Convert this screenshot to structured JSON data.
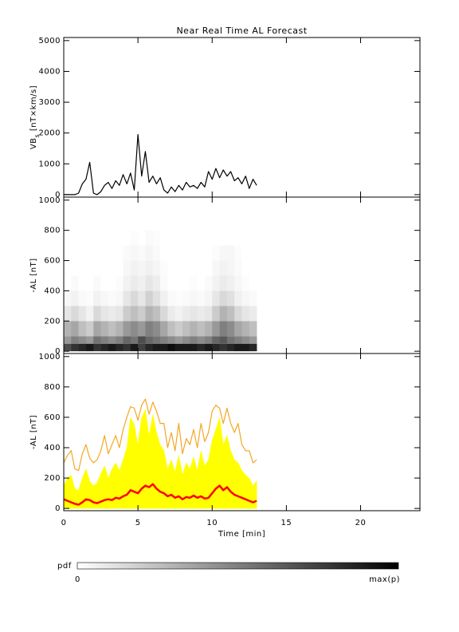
{
  "chart_data": [
    {
      "type": "line",
      "title": "Near Real Time AL Forecast",
      "ylabel": [
        "VB",
        "s",
        " [nT×km/s]"
      ],
      "x": [
        0,
        0.25,
        0.5,
        0.75,
        1,
        1.25,
        1.5,
        1.75,
        2,
        2.25,
        2.5,
        2.75,
        3,
        3.25,
        3.5,
        3.75,
        4,
        4.25,
        4.5,
        4.75,
        5,
        5.25,
        5.5,
        5.75,
        6,
        6.25,
        6.5,
        6.75,
        7,
        7.25,
        7.5,
        7.75,
        8,
        8.25,
        8.5,
        8.75,
        9,
        9.25,
        9.5,
        9.75,
        10,
        10.25,
        10.5,
        10.75,
        11,
        11.25,
        11.5,
        11.75,
        12,
        12.25,
        12.5,
        12.75,
        13
      ],
      "values": [
        0,
        0,
        0,
        0,
        50,
        350,
        500,
        1050,
        50,
        0,
        100,
        300,
        400,
        200,
        450,
        300,
        650,
        350,
        700,
        150,
        1950,
        600,
        1400,
        400,
        600,
        350,
        550,
        150,
        50,
        250,
        100,
        300,
        150,
        400,
        250,
        300,
        200,
        400,
        250,
        750,
        500,
        850,
        550,
        800,
        600,
        750,
        450,
        550,
        350,
        600,
        200,
        500,
        300
      ],
      "color": "#000000",
      "xlim": [
        0,
        24
      ],
      "xticks": [
        0,
        5,
        10,
        15,
        20
      ],
      "ylim": [
        -80,
        5100
      ],
      "yticks": [
        0,
        1000,
        2000,
        3000,
        4000,
        5000
      ]
    },
    {
      "type": "heatmap",
      "ylabel": [
        "-AL [nT]"
      ],
      "bins": [
        0,
        0.5,
        1,
        1.5,
        2,
        2.5,
        3,
        3.5,
        4,
        4.5,
        5,
        5.5,
        6,
        6.5,
        7,
        7.5,
        8,
        8.5,
        9,
        9.5,
        10,
        10.5,
        11,
        11.5,
        12,
        12.5,
        13
      ],
      "y_bins": [
        0,
        50,
        100,
        200,
        300,
        400,
        500,
        600,
        700,
        800
      ],
      "z": [
        [
          0.7,
          0.8,
          0.85,
          0.9,
          0.8,
          0.85,
          0.9,
          0.85,
          0.8,
          0.9,
          0.75,
          0.85,
          0.9,
          0.9,
          0.95,
          0.9,
          0.9,
          0.9,
          0.85,
          0.9,
          0.85,
          0.8,
          0.85,
          0.9,
          0.9,
          0.85
        ],
        [
          0.4,
          0.5,
          0.45,
          0.4,
          0.55,
          0.5,
          0.45,
          0.5,
          0.6,
          0.55,
          0.7,
          0.6,
          0.55,
          0.5,
          0.45,
          0.4,
          0.45,
          0.5,
          0.45,
          0.5,
          0.6,
          0.65,
          0.55,
          0.5,
          0.45,
          0.4
        ],
        [
          0.3,
          0.35,
          0.25,
          0.2,
          0.35,
          0.3,
          0.25,
          0.3,
          0.4,
          0.45,
          0.4,
          0.5,
          0.45,
          0.35,
          0.25,
          0.2,
          0.25,
          0.3,
          0.25,
          0.3,
          0.4,
          0.5,
          0.45,
          0.35,
          0.3,
          0.25
        ],
        [
          0.1,
          0.15,
          0.1,
          0.05,
          0.15,
          0.1,
          0.08,
          0.1,
          0.2,
          0.25,
          0.2,
          0.3,
          0.25,
          0.15,
          0.08,
          0.05,
          0.08,
          0.1,
          0.08,
          0.1,
          0.2,
          0.3,
          0.25,
          0.15,
          0.1,
          0.08
        ],
        [
          0.03,
          0.05,
          0.02,
          0.01,
          0.05,
          0.03,
          0.02,
          0.03,
          0.1,
          0.15,
          0.1,
          0.18,
          0.12,
          0.06,
          0.02,
          0.01,
          0.02,
          0.03,
          0.02,
          0.04,
          0.1,
          0.15,
          0.12,
          0.06,
          0.03,
          0.02
        ],
        [
          0,
          0.02,
          0,
          0,
          0.02,
          0,
          0,
          0.01,
          0.05,
          0.08,
          0.06,
          0.1,
          0.07,
          0.02,
          0,
          0,
          0,
          0.01,
          0,
          0.02,
          0.05,
          0.08,
          0.06,
          0.03,
          0.01,
          0
        ],
        [
          0,
          0,
          0,
          0,
          0,
          0,
          0,
          0,
          0.03,
          0.05,
          0.04,
          0.06,
          0.04,
          0.01,
          0,
          0,
          0,
          0,
          0,
          0,
          0.03,
          0.05,
          0.04,
          0.02,
          0,
          0
        ],
        [
          0,
          0,
          0,
          0,
          0,
          0,
          0,
          0,
          0.02,
          0.03,
          0.02,
          0.04,
          0.02,
          0,
          0,
          0,
          0,
          0,
          0,
          0,
          0.01,
          0.03,
          0.03,
          0.01,
          0,
          0
        ],
        [
          0,
          0,
          0,
          0,
          0,
          0,
          0,
          0,
          0,
          0.01,
          0,
          0.02,
          0.01,
          0,
          0,
          0,
          0,
          0,
          0,
          0,
          0,
          0,
          0,
          0,
          0,
          0
        ]
      ],
      "xlim": [
        0,
        24
      ],
      "xticks": [
        0,
        5,
        10,
        15,
        20
      ],
      "ylim": [
        -15,
        1020
      ],
      "yticks": [
        0,
        200,
        400,
        600,
        800,
        1000
      ]
    },
    {
      "type": "line",
      "ylabel": [
        "-AL [nT]"
      ],
      "xlabel": "Time [min]",
      "show_xtick_labels": true,
      "x": [
        0,
        0.25,
        0.5,
        0.75,
        1,
        1.25,
        1.5,
        1.75,
        2,
        2.25,
        2.5,
        2.75,
        3,
        3.25,
        3.5,
        3.75,
        4,
        4.25,
        4.5,
        4.75,
        5,
        5.25,
        5.5,
        5.75,
        6,
        6.25,
        6.5,
        6.75,
        7,
        7.25,
        7.5,
        7.75,
        8,
        8.25,
        8.5,
        8.75,
        9,
        9.25,
        9.5,
        9.75,
        10,
        10.25,
        10.5,
        10.75,
        11,
        11.25,
        11.5,
        11.75,
        12,
        12.25,
        12.5,
        12.75,
        13
      ],
      "series": [
        {
          "color": "#f5a623",
          "style": "line",
          "values": [
            300,
            350,
            380,
            260,
            250,
            360,
            420,
            330,
            300,
            320,
            380,
            480,
            360,
            420,
            480,
            400,
            520,
            600,
            670,
            660,
            580,
            680,
            720,
            620,
            700,
            640,
            560,
            560,
            400,
            500,
            380,
            560,
            360,
            460,
            420,
            520,
            400,
            560,
            440,
            500,
            640,
            680,
            660,
            560,
            660,
            560,
            500,
            560,
            420,
            380,
            380,
            300,
            320
          ]
        },
        {
          "color": "#ffff00",
          "style": "area",
          "values": [
            150,
            200,
            220,
            130,
            120,
            200,
            260,
            180,
            150,
            170,
            230,
            280,
            200,
            260,
            300,
            250,
            320,
            400,
            600,
            550,
            420,
            600,
            650,
            480,
            620,
            500,
            420,
            380,
            260,
            320,
            240,
            350,
            220,
            300,
            260,
            340,
            250,
            380,
            280,
            320,
            450,
            520,
            600,
            420,
            480,
            380,
            320,
            300,
            250,
            220,
            200,
            150,
            180
          ]
        },
        {
          "color": "#ff0000",
          "style": "line",
          "values": [
            60,
            50,
            40,
            30,
            25,
            40,
            60,
            55,
            40,
            35,
            45,
            55,
            60,
            55,
            70,
            65,
            80,
            90,
            120,
            110,
            100,
            130,
            150,
            140,
            160,
            130,
            110,
            100,
            80,
            90,
            70,
            80,
            60,
            75,
            70,
            85,
            70,
            80,
            65,
            70,
            100,
            130,
            150,
            120,
            140,
            110,
            90,
            80,
            70,
            60,
            50,
            40,
            50
          ]
        }
      ],
      "xlim": [
        0,
        24
      ],
      "xticks": [
        0,
        5,
        10,
        15,
        20
      ],
      "ylim": [
        -15,
        1020
      ],
      "yticks": [
        0,
        200,
        400,
        600,
        800,
        1000
      ]
    }
  ],
  "colorbar": {
    "label": "pdf",
    "min": 0,
    "max_label": "max(p)"
  }
}
